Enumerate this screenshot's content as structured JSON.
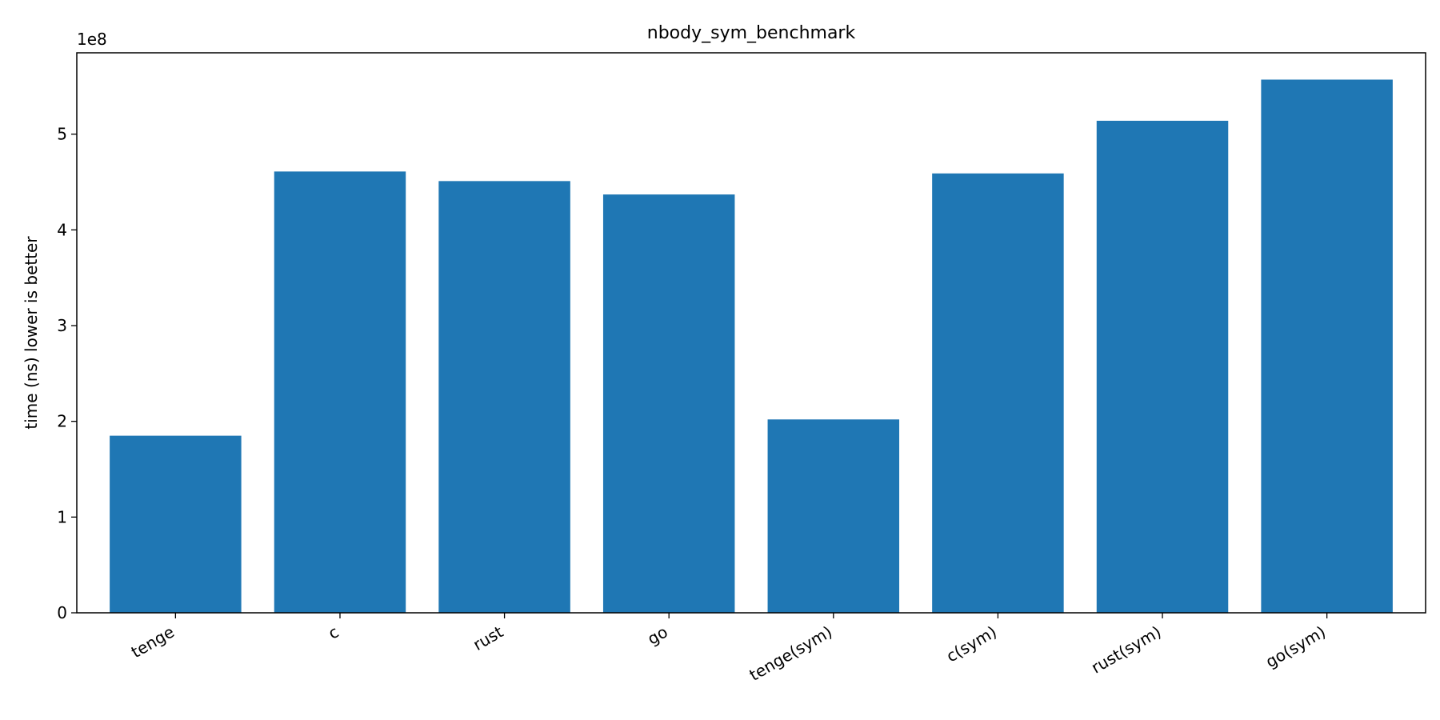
{
  "chart_data": {
    "type": "bar",
    "title": "nbody_sym_benchmark",
    "xlabel": "",
    "ylabel": "time (ns) lower is better",
    "offset_label": "1e8",
    "categories": [
      "tenge",
      "c",
      "rust",
      "go",
      "tenge(sym)",
      "c(sym)",
      "rust(sym)",
      "go(sym)"
    ],
    "values": [
      185000000,
      461000000,
      451000000,
      437000000,
      202000000,
      459000000,
      514000000,
      557000000
    ],
    "ylim": [
      0,
      585000000
    ],
    "yticks": [
      0,
      100000000,
      200000000,
      300000000,
      400000000,
      500000000
    ],
    "ytick_labels": [
      "0",
      "1",
      "2",
      "3",
      "4",
      "5"
    ],
    "grid": false,
    "bar_color": "#1f77b4"
  }
}
